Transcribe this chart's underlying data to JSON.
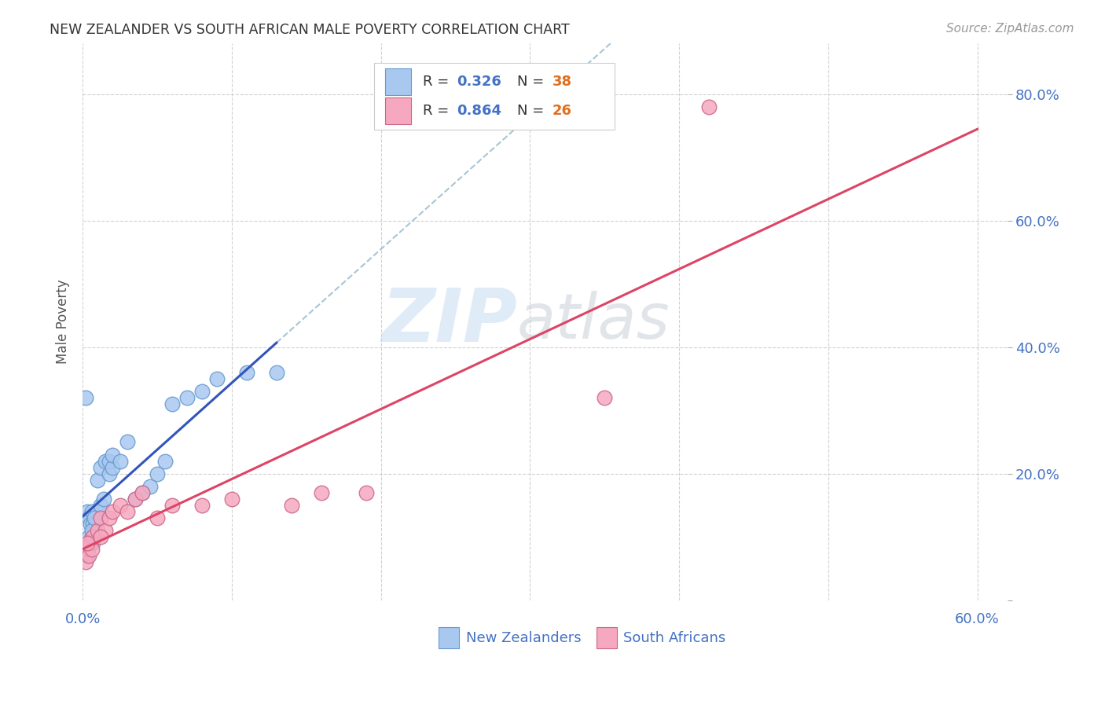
{
  "title": "NEW ZEALANDER VS SOUTH AFRICAN MALE POVERTY CORRELATION CHART",
  "source": "Source: ZipAtlas.com",
  "ylabel": "Male Poverty",
  "xlim": [
    0.0,
    0.62
  ],
  "ylim": [
    0.0,
    0.88
  ],
  "xticks": [
    0.0,
    0.1,
    0.2,
    0.3,
    0.4,
    0.5,
    0.6
  ],
  "yticks": [
    0.0,
    0.2,
    0.4,
    0.6,
    0.8
  ],
  "yticklabels_right": [
    "",
    "20.0%",
    "40.0%",
    "60.0%",
    "80.0%"
  ],
  "grid_color": "#cccccc",
  "bg_color": "#ffffff",
  "nz_color": "#A8C8F0",
  "sa_color": "#F5A8BF",
  "nz_edge_color": "#6699CC",
  "sa_edge_color": "#CC6688",
  "nz_line_color": "#3355BB",
  "sa_line_color": "#DD4466",
  "nz_dash_color": "#99BBCC",
  "tick_label_color": "#4472C4",
  "title_color": "#333333",
  "source_color": "#999999",
  "r_color": "#4472C4",
  "n_color": "#E07020",
  "nz_x": [
    0.002,
    0.003,
    0.004,
    0.004,
    0.005,
    0.005,
    0.006,
    0.006,
    0.007,
    0.007,
    0.008,
    0.009,
    0.01,
    0.01,
    0.012,
    0.012,
    0.014,
    0.015,
    0.018,
    0.018,
    0.02,
    0.02,
    0.025,
    0.03,
    0.035,
    0.04,
    0.045,
    0.05,
    0.055,
    0.06,
    0.07,
    0.08,
    0.09,
    0.11,
    0.13,
    0.003,
    0.006,
    0.008
  ],
  "nz_y": [
    0.32,
    0.14,
    0.1,
    0.13,
    0.09,
    0.12,
    0.1,
    0.14,
    0.12,
    0.09,
    0.11,
    0.12,
    0.14,
    0.19,
    0.15,
    0.21,
    0.16,
    0.22,
    0.2,
    0.22,
    0.21,
    0.23,
    0.22,
    0.25,
    0.16,
    0.17,
    0.18,
    0.2,
    0.22,
    0.31,
    0.32,
    0.33,
    0.35,
    0.36,
    0.36,
    0.07,
    0.11,
    0.13
  ],
  "sa_x": [
    0.002,
    0.003,
    0.004,
    0.005,
    0.006,
    0.007,
    0.01,
    0.012,
    0.015,
    0.018,
    0.02,
    0.025,
    0.03,
    0.035,
    0.04,
    0.05,
    0.06,
    0.08,
    0.1,
    0.14,
    0.16,
    0.19,
    0.35,
    0.42,
    0.003,
    0.012
  ],
  "sa_y": [
    0.06,
    0.08,
    0.07,
    0.09,
    0.08,
    0.1,
    0.11,
    0.13,
    0.11,
    0.13,
    0.14,
    0.15,
    0.14,
    0.16,
    0.17,
    0.13,
    0.15,
    0.15,
    0.16,
    0.15,
    0.17,
    0.17,
    0.32,
    0.78,
    0.09,
    0.1
  ]
}
